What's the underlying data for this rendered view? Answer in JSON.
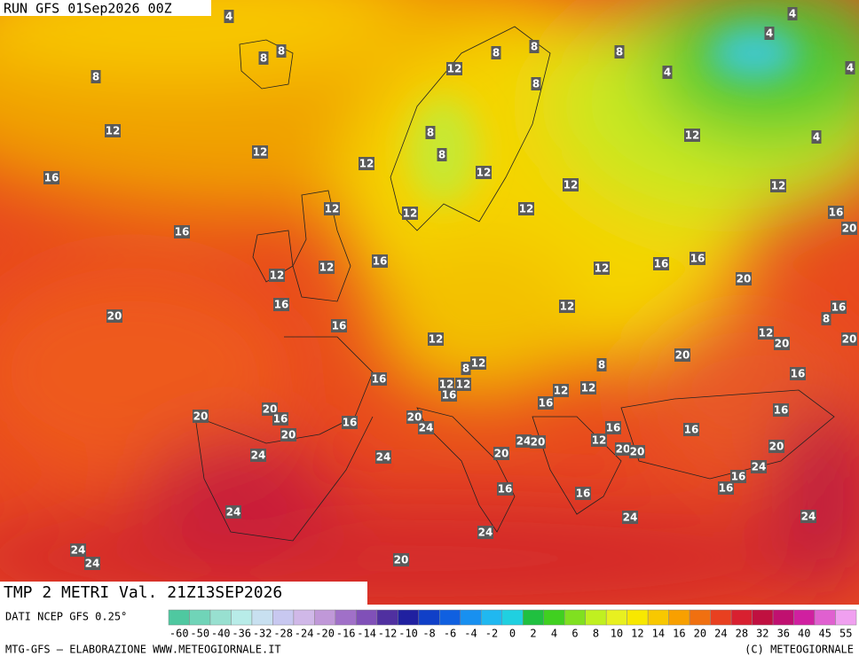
{
  "header": {
    "run": "RUN GFS 01Sep2026 00Z",
    "field": "TMP 2 METRI Val. 21Z13SEP2026"
  },
  "footer": {
    "source": "DATI NCEP GFS 0.25°",
    "credit": "MTG-GFS — ELABORAZIONE WWW.METEOGIORNALE.IT",
    "copyright": "(C) METEOGIORNALE"
  },
  "scale": {
    "ticks": [
      -60,
      -50,
      -40,
      -36,
      -32,
      -28,
      -24,
      -20,
      -16,
      -14,
      -12,
      -10,
      -8,
      -6,
      -4,
      -2,
      0,
      2,
      4,
      6,
      8,
      10,
      12,
      14,
      16,
      20,
      24,
      28,
      32,
      36,
      40,
      45,
      55
    ],
    "colors": [
      "#4fc8a0",
      "#70d4b8",
      "#98e0d0",
      "#b8ece8",
      "#c8e0f0",
      "#c8c8f0",
      "#d0b8e8",
      "#c098d8",
      "#a070c8",
      "#8050b8",
      "#5030a0",
      "#2020a0",
      "#1040c8",
      "#1060e0",
      "#1890f0",
      "#20b8f0",
      "#20d0e0",
      "#20c040",
      "#40d020",
      "#80e020",
      "#c0f020",
      "#e8f020",
      "#f8e800",
      "#f8c800",
      "#f8a000",
      "#f07010",
      "#e84020",
      "#d82030",
      "#c01040",
      "#c01070",
      "#d020a0",
      "#e060d0",
      "#f0a0f0"
    ]
  },
  "map": {
    "labels": [
      4,
      4,
      4,
      4,
      4,
      4,
      8,
      8,
      8,
      8,
      8,
      8,
      8,
      8,
      8,
      12,
      12,
      12,
      12,
      12,
      12,
      12,
      12,
      12,
      12,
      12,
      16,
      16,
      16,
      20,
      12,
      12,
      16,
      12,
      16,
      16,
      16,
      20,
      16,
      20,
      16,
      8,
      12,
      12,
      12,
      20,
      20,
      20,
      8,
      12,
      8,
      16,
      16,
      12,
      12,
      12,
      12,
      16,
      16,
      20,
      20,
      16,
      20,
      24,
      20,
      16,
      16,
      16,
      16,
      24,
      20,
      12,
      20,
      20,
      24,
      24,
      20,
      20,
      24,
      16,
      16,
      16,
      16,
      24,
      24,
      24,
      24,
      24,
      24,
      20
    ]
  }
}
